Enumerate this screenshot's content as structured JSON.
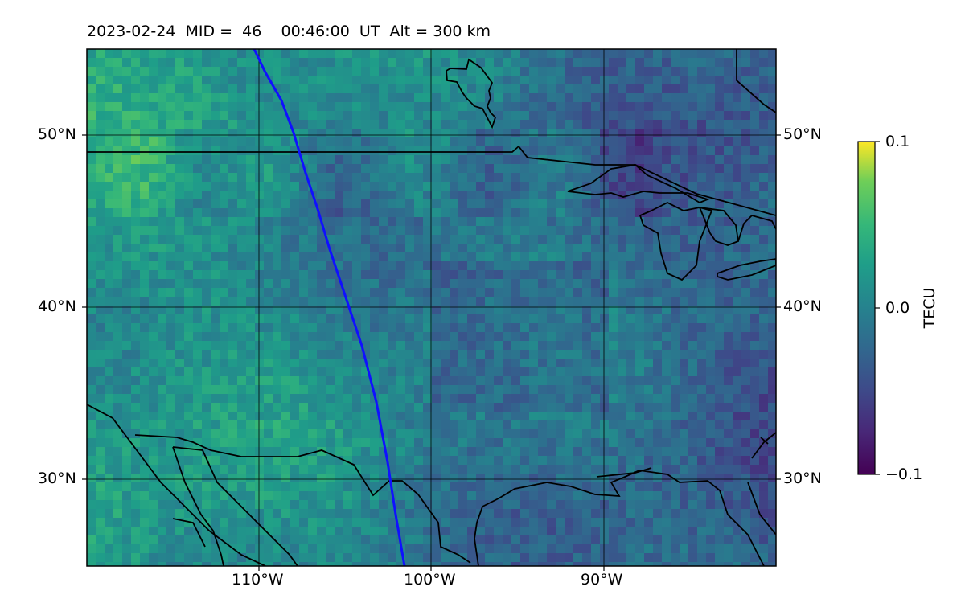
{
  "title": "2023-02-24  MID =  46    00:46:00  UT  Alt = 300 km",
  "lat_ticks": [
    {
      "label": "50°N",
      "value": 50
    },
    {
      "label": "40°N",
      "value": 40
    },
    {
      "label": "30°N",
      "value": 30
    }
  ],
  "lon_ticks": [
    {
      "label": "110°W",
      "value": -110
    },
    {
      "label": "100°W",
      "value": -100
    },
    {
      "label": "90°W",
      "value": -90
    }
  ],
  "extent": {
    "lon": [
      -120,
      -80
    ],
    "lat": [
      25,
      55
    ]
  },
  "colorbar": {
    "label": "TECU",
    "ticks": [
      {
        "label": "0.1",
        "value": 0.1
      },
      {
        "label": "0.0",
        "value": 0.0
      },
      {
        "label": "−0.1",
        "value": -0.1
      }
    ],
    "range": [
      -0.1,
      0.1
    ],
    "colormap": "viridis"
  },
  "colors": {
    "track": "#1010ff",
    "coastline": "#000000",
    "grid": "#000000"
  }
}
